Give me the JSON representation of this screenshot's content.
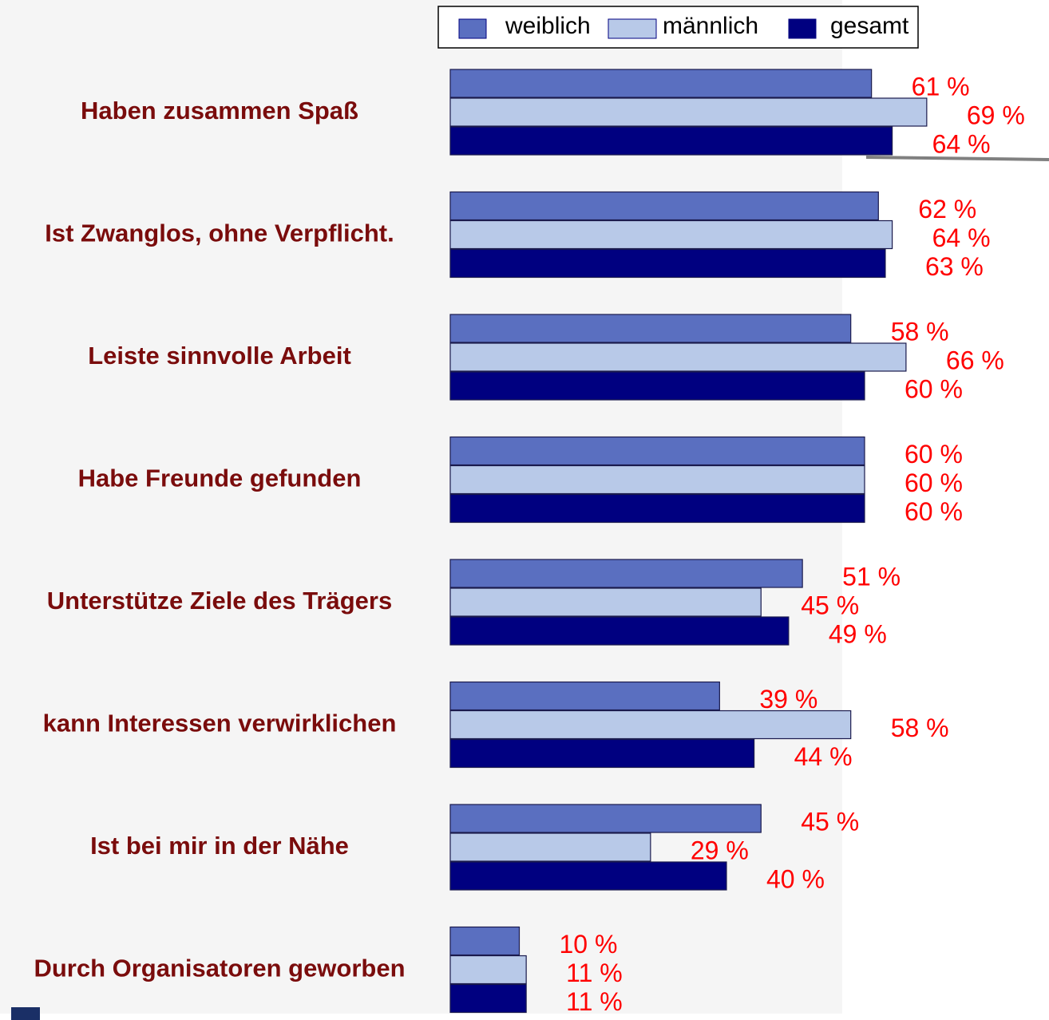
{
  "chart_data": {
    "type": "bar",
    "orientation": "horizontal",
    "categories": [
      "Haben zusammen Spaß",
      "Ist Zwanglos, ohne Verpflicht.",
      "Leiste sinnvolle Arbeit",
      "Habe Freunde gefunden",
      "Unterstütze Ziele des Trägers",
      "kann Interessen verwirklichen",
      "Ist bei mir in der Nähe",
      "Durch Organisatoren geworben"
    ],
    "series": [
      {
        "name": "weiblich",
        "color": "#5a6fc0",
        "values": [
          61,
          62,
          58,
          60,
          51,
          39,
          45,
          10
        ],
        "value_labels": [
          "61 %",
          "62 %",
          "58 %",
          "60 %",
          "51 %",
          "39 %",
          "45 %",
          "10 %"
        ]
      },
      {
        "name": "männlich",
        "color": "#b8c9e8",
        "values": [
          69,
          64,
          66,
          60,
          45,
          58,
          29,
          11
        ],
        "value_labels": [
          "69 %",
          "64 %",
          "66 %",
          "60 %",
          "45 %",
          "58 %",
          "29 %",
          "11 %"
        ]
      },
      {
        "name": "gesamt",
        "color": "#000080",
        "values": [
          64,
          63,
          60,
          60,
          49,
          44,
          40,
          11
        ],
        "value_labels": [
          "64 %",
          "63 %",
          "60 %",
          "60 %",
          "49 %",
          "44 %",
          "40 %",
          "11 %"
        ]
      }
    ],
    "legend": "top"
  }
}
